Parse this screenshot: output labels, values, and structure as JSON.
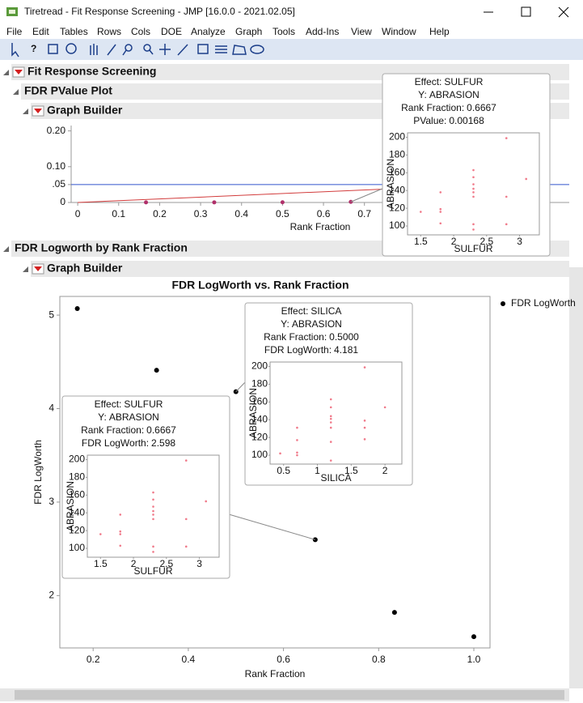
{
  "window": {
    "title": "Tiretread - Fit Response Screening - JMP [16.0.0 - 2021.02.05]"
  },
  "menu": [
    "File",
    "Edit",
    "Tables",
    "Rows",
    "Cols",
    "DOE",
    "Analyze",
    "Graph",
    "Tools",
    "Add-Ins",
    "View",
    "Window",
    "Help"
  ],
  "outline": {
    "root": "Fit Response Screening",
    "pvalue_section": "FDR PValue Plot",
    "graph_builder_1": "Graph Builder",
    "logworth_section": "FDR Logworth by Rank Fraction",
    "graph_builder_2": "Graph Builder"
  },
  "pvalue_plot": {
    "type": "scatter",
    "x_label": "Rank Fraction",
    "x": [
      0.1667,
      0.3333,
      0.5,
      0.6667
    ],
    "values": [
      0.0002,
      0.0004,
      0.0006,
      0.00168
    ],
    "color": "#b0306a",
    "xlim": [
      -0.016,
      1.2
    ],
    "ylim": [
      0,
      0.215
    ],
    "xticks": [
      0,
      0.1,
      0.2,
      0.3,
      0.4,
      0.5,
      0.6,
      0.7
    ],
    "yticks": [
      0,
      {
        "value": 0.05,
        "label": ".05"
      },
      {
        "value": 0.1,
        "label": "0.10"
      },
      {
        "value": 0.2,
        "label": "0.20"
      }
    ],
    "alpha_line": 0.05,
    "alpha_color": "#3355cc",
    "bh_line": {
      "x": [
        0,
        1
      ],
      "y": [
        0,
        0.05
      ],
      "color": "#d23c3c"
    },
    "tooltip": {
      "lines": [
        {
          "label": "Effect:",
          "value": "SULFUR"
        },
        {
          "label": "Y:",
          "value": "ABRASION"
        },
        {
          "label": "Rank Fraction:",
          "value": "0.6667"
        },
        {
          "label": "PValue:",
          "value": "0.00168"
        }
      ],
      "thumbnail": {
        "x_label": "SULFUR",
        "y_label": "ABRASION",
        "color": "#f07a8a",
        "x": [
          2.8,
          2.3,
          2.3,
          1.8,
          2.3,
          2.3,
          2.3,
          2.3,
          3.1,
          2.8,
          1.8,
          1.8,
          1.5,
          1.8,
          2.3,
          2.8,
          2.3
        ],
        "values": [
          199,
          163,
          155,
          138,
          147,
          142,
          138,
          133,
          153,
          133,
          119,
          116,
          116,
          103,
          102,
          102,
          96
        ],
        "xlim": [
          1.3,
          3.3
        ],
        "ylim": [
          90,
          205
        ],
        "xticks": [
          1.5,
          2,
          2.5,
          3
        ],
        "yticks": [
          100,
          120,
          140,
          160,
          180,
          200
        ]
      }
    }
  },
  "logworth_plot": {
    "type": "scatter",
    "title": "FDR LogWorth vs. Rank Fraction",
    "x_label": "Rank Fraction",
    "y_label": "FDR LogWorth",
    "series": [
      {
        "name": "FDR LogWorth",
        "color": "#000000",
        "x": [
          0.1667,
          0.3333,
          0.5,
          0.6667,
          0.8333,
          1.0
        ],
        "values": [
          5.07,
          4.41,
          4.181,
          2.598,
          1.82,
          1.56
        ]
      }
    ],
    "xlim": [
      0.13,
      1.034
    ],
    "ylim": [
      1.44,
      5.2
    ],
    "xticks": [
      0.2,
      0.4,
      0.6,
      0.8,
      {
        "value": 1,
        "label": "1.0"
      }
    ],
    "yticks": [
      2,
      3,
      4,
      5
    ],
    "tooltips": [
      {
        "lines": [
          {
            "label": "Effect:",
            "value": "SILICA"
          },
          {
            "label": "Y:",
            "value": "ABRASION"
          },
          {
            "label": "Rank Fraction:",
            "value": "0.5000"
          },
          {
            "label": "FDR LogWorth:",
            "value": "4.181"
          }
        ],
        "thumbnail": {
          "x_label": "SILICA",
          "y_label": "ABRASION",
          "color": "#f07a8a",
          "x": [
            1.7,
            1.2,
            1.2,
            2.0,
            0.7,
            1.2,
            1.2,
            1.2,
            1.2,
            1.7,
            1.7,
            1.7,
            0.7,
            1.2,
            0.45,
            0.7,
            0.7,
            1.2
          ],
          "values": [
            199,
            163,
            154,
            154,
            131,
            144,
            141,
            137,
            131,
            139,
            131,
            118,
            117,
            115,
            102,
            103,
            100,
            94
          ],
          "xlim": [
            0.3,
            2.25
          ],
          "ylim": [
            90,
            205
          ],
          "xticks": [
            0.5,
            1,
            1.5,
            2
          ],
          "yticks": [
            100,
            120,
            140,
            160,
            180,
            200
          ]
        }
      },
      {
        "lines": [
          {
            "label": "Effect:",
            "value": "SULFUR"
          },
          {
            "label": "Y:",
            "value": "ABRASION"
          },
          {
            "label": "Rank Fraction:",
            "value": "0.6667"
          },
          {
            "label": "FDR LogWorth:",
            "value": "2.598"
          }
        ],
        "thumbnail": {
          "x_label": "SULFUR",
          "y_label": "ABRASION",
          "color": "#f07a8a",
          "x": [
            2.8,
            2.3,
            2.3,
            1.8,
            2.3,
            2.3,
            2.3,
            2.3,
            3.1,
            2.8,
            1.8,
            1.8,
            1.5,
            1.8,
            2.3,
            2.8,
            2.3
          ],
          "values": [
            199,
            163,
            155,
            138,
            147,
            142,
            138,
            133,
            153,
            133,
            119,
            116,
            116,
            103,
            102,
            102,
            96
          ],
          "xlim": [
            1.3,
            3.3
          ],
          "ylim": [
            90,
            205
          ],
          "xticks": [
            1.5,
            2,
            2.5,
            3
          ],
          "yticks": [
            100,
            120,
            140,
            160,
            180,
            200
          ]
        }
      }
    ]
  }
}
